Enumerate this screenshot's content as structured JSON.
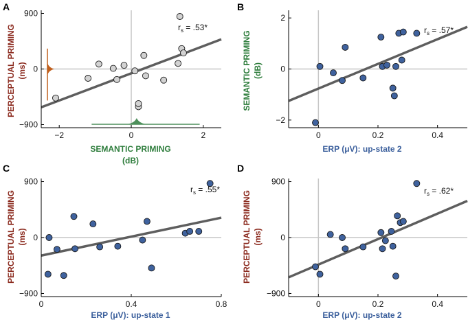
{
  "colors": {
    "perceptual": "#8b2a1e",
    "semantic": "#2e7d3c",
    "erp": "#3b5f9c",
    "marker_blue": "#3f629e",
    "marker_gray": "#d2d2d2",
    "fit_line": "#5e5e5e",
    "zero_line": "#c6c6c6",
    "orange_marginal": "#c0601e",
    "green_marginal": "#4d8f5b"
  },
  "chart_data": [
    {
      "panel": "A",
      "type": "scatter",
      "xlabel": [
        "SEMANTIC PRIMING",
        "(dB)"
      ],
      "ylabel": [
        "PERCEPTUAL PRIMING",
        "(ms)"
      ],
      "xlabel_color": "semantic",
      "ylabel_color": "perceptual",
      "xlim": [
        -2.5,
        2.5
      ],
      "ylim": [
        -950,
        950
      ],
      "xticks": [
        -2,
        0,
        2
      ],
      "xticklabels": [
        "−2",
        "0",
        "2"
      ],
      "yticks": [
        900,
        0,
        -900
      ],
      "yticklabels": [
        "900",
        "0",
        "−900"
      ],
      "zero_x": 0,
      "zero_y": 0,
      "marker": "gray",
      "stat": {
        "main": "r",
        "sub": "s",
        "value": " = .53*"
      },
      "fit": {
        "x": [
          -2.5,
          2.5
        ],
        "y": [
          -620,
          480
        ]
      },
      "points": [
        {
          "x": -2.1,
          "y": -470
        },
        {
          "x": -1.2,
          "y": -150
        },
        {
          "x": -0.9,
          "y": 80
        },
        {
          "x": -0.5,
          "y": 10
        },
        {
          "x": -0.4,
          "y": -170
        },
        {
          "x": -0.2,
          "y": 60
        },
        {
          "x": 0.1,
          "y": -30
        },
        {
          "x": 0.2,
          "y": -610
        },
        {
          "x": 0.2,
          "y": -560
        },
        {
          "x": 0.35,
          "y": 220
        },
        {
          "x": 0.4,
          "y": -110
        },
        {
          "x": 0.9,
          "y": -180
        },
        {
          "x": 1.3,
          "y": 90
        },
        {
          "x": 1.35,
          "y": 850
        },
        {
          "x": 1.4,
          "y": 330
        },
        {
          "x": 1.45,
          "y": 260
        }
      ],
      "marginals": {
        "y_dist": {
          "center": 0,
          "low": -510,
          "high": 330,
          "color": "orange_marginal"
        },
        "x_dist": {
          "center": 0.15,
          "low": -1.1,
          "high": 1.9,
          "color": "green_marginal"
        }
      }
    },
    {
      "panel": "B",
      "type": "scatter",
      "xlabel": [
        "ERP (μV): up-state 2"
      ],
      "ylabel": [
        "SEMANTIC PRIMING",
        "(dB)"
      ],
      "xlabel_color": "erp",
      "ylabel_color": "semantic",
      "xlim": [
        -0.1,
        0.5
      ],
      "ylim": [
        -2.3,
        2.3
      ],
      "xticks": [
        0,
        0.2,
        0.4
      ],
      "xticklabels": [
        "0",
        "0.2",
        "0.4"
      ],
      "yticks": [
        2,
        0,
        -2
      ],
      "yticklabels": [
        "2",
        "0",
        "−2"
      ],
      "zero_x": 0,
      "zero_y": 0,
      "marker": "blue",
      "stat": {
        "main": "r",
        "sub": "s",
        "value": " = .57*"
      },
      "fit": {
        "x": [
          -0.1,
          0.5
        ],
        "y": [
          -1.25,
          1.65
        ]
      },
      "points": [
        {
          "x": -0.01,
          "y": -2.1
        },
        {
          "x": 0.005,
          "y": 0.1
        },
        {
          "x": 0.05,
          "y": -0.15
        },
        {
          "x": 0.08,
          "y": -0.45
        },
        {
          "x": 0.09,
          "y": 0.85
        },
        {
          "x": 0.15,
          "y": -0.35
        },
        {
          "x": 0.21,
          "y": 1.25
        },
        {
          "x": 0.215,
          "y": 0.1
        },
        {
          "x": 0.23,
          "y": 0.15
        },
        {
          "x": 0.25,
          "y": -0.75
        },
        {
          "x": 0.255,
          "y": -1.05
        },
        {
          "x": 0.26,
          "y": 0.1
        },
        {
          "x": 0.27,
          "y": 1.4
        },
        {
          "x": 0.28,
          "y": 0.35
        },
        {
          "x": 0.285,
          "y": 1.45
        },
        {
          "x": 0.33,
          "y": 1.4
        }
      ]
    },
    {
      "panel": "C",
      "type": "scatter",
      "xlabel": [
        "ERP (μV): up-state 1"
      ],
      "ylabel": [
        "PERCEPTUAL PRIMING",
        "(ms)"
      ],
      "xlabel_color": "erp",
      "ylabel_color": "perceptual",
      "xlim": [
        0,
        0.8
      ],
      "ylim": [
        -950,
        950
      ],
      "xticks": [
        0,
        0.4,
        0.8
      ],
      "xticklabels": [
        "0",
        "0.4",
        "0.8"
      ],
      "yticks": [
        900,
        0,
        -900
      ],
      "yticklabels": [
        "900",
        "0",
        "−900"
      ],
      "zero_x": null,
      "zero_y": 0,
      "marker": "blue",
      "stat": {
        "main": "r",
        "sub": "s",
        "value": " = .55*"
      },
      "fit": {
        "x": [
          0,
          0.8
        ],
        "y": [
          -290,
          320
        ]
      },
      "points": [
        {
          "x": 0.03,
          "y": -590
        },
        {
          "x": 0.035,
          "y": 0
        },
        {
          "x": 0.07,
          "y": -190
        },
        {
          "x": 0.1,
          "y": -610
        },
        {
          "x": 0.145,
          "y": 340
        },
        {
          "x": 0.15,
          "y": -180
        },
        {
          "x": 0.23,
          "y": 220
        },
        {
          "x": 0.26,
          "y": -150
        },
        {
          "x": 0.34,
          "y": -140
        },
        {
          "x": 0.45,
          "y": -40
        },
        {
          "x": 0.47,
          "y": 260
        },
        {
          "x": 0.49,
          "y": -490
        },
        {
          "x": 0.64,
          "y": 70
        },
        {
          "x": 0.66,
          "y": 100
        },
        {
          "x": 0.7,
          "y": 100
        },
        {
          "x": 0.75,
          "y": 870
        }
      ]
    },
    {
      "panel": "D",
      "type": "scatter",
      "xlabel": [
        "ERP (μV): up-state 2"
      ],
      "ylabel": [
        "PERCEPTUAL PRIMING",
        "(ms)"
      ],
      "xlabel_color": "erp",
      "ylabel_color": "perceptual",
      "xlim": [
        -0.1,
        0.5
      ],
      "ylim": [
        -950,
        950
      ],
      "xticks": [
        0,
        0.2,
        0.4
      ],
      "xticklabels": [
        "0",
        "0.2",
        "0.4"
      ],
      "yticks": [
        900,
        0,
        -900
      ],
      "yticklabels": [
        "900",
        "0",
        "−900"
      ],
      "zero_x": 0,
      "zero_y": 0,
      "marker": "blue",
      "stat": {
        "main": "r",
        "sub": "s",
        "value": " = .62*"
      },
      "fit": {
        "x": [
          -0.1,
          0.5
        ],
        "y": [
          -640,
          590
        ]
      },
      "points": [
        {
          "x": -0.01,
          "y": -470
        },
        {
          "x": 0.005,
          "y": -590
        },
        {
          "x": 0.04,
          "y": 50
        },
        {
          "x": 0.08,
          "y": 0
        },
        {
          "x": 0.09,
          "y": -180
        },
        {
          "x": 0.15,
          "y": -150
        },
        {
          "x": 0.21,
          "y": 80
        },
        {
          "x": 0.215,
          "y": -180
        },
        {
          "x": 0.225,
          "y": -50
        },
        {
          "x": 0.245,
          "y": 100
        },
        {
          "x": 0.25,
          "y": -140
        },
        {
          "x": 0.26,
          "y": -620
        },
        {
          "x": 0.265,
          "y": 350
        },
        {
          "x": 0.275,
          "y": 240
        },
        {
          "x": 0.285,
          "y": 260
        },
        {
          "x": 0.33,
          "y": 870
        }
      ]
    }
  ]
}
